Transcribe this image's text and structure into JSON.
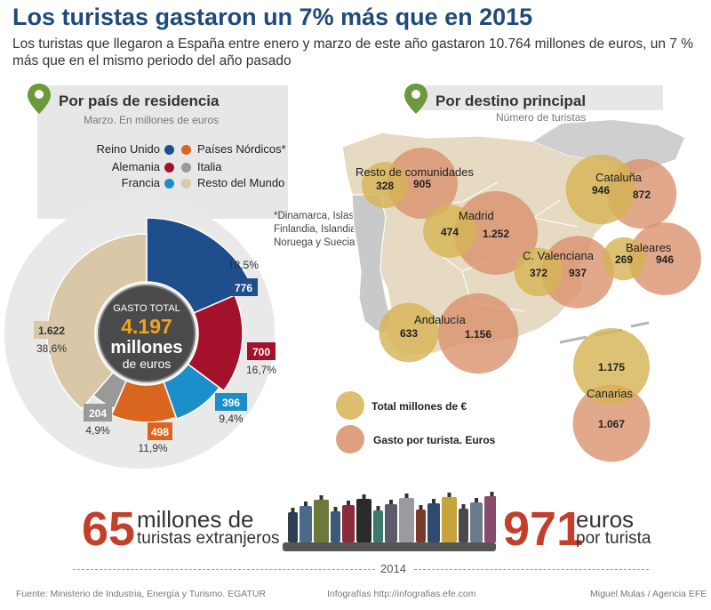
{
  "title": "Los turistas gastaron un 7% más que en 2015",
  "subtitle": "Los turistas que llegaron a España entre enero y marzo de este año gastaron 10.764 millones de euros, un 7 % más que en el mismo periodo del año pasado",
  "left_panel": {
    "header": "Por país de residencia",
    "subheader": "Marzo. En millones de euros",
    "legend": [
      {
        "label": "Reino Unido",
        "color": "#1f4e8c"
      },
      {
        "label": "Países Nórdicos*",
        "color": "#d9651f"
      },
      {
        "label": "Alemania",
        "color": "#a3122a"
      },
      {
        "label": "Italia",
        "color": "#999999"
      },
      {
        "label": "Francia",
        "color": "#1a8fc9"
      },
      {
        "label": "Resto del Mundo",
        "color": "#d8c8a8"
      }
    ],
    "footnote": [
      "*Dinamarca, Islas Feroe,",
      "Finlandia, Islandia,",
      "Noruega y Suecia"
    ],
    "center": {
      "label": "GASTO TOTAL",
      "value": "4.197",
      "unit1": "millones",
      "unit2": "de euros"
    }
  },
  "right_panel": {
    "header": "Por destino principal",
    "subheader": "Número de turistas",
    "legend": [
      {
        "label": "Total millones de €",
        "color": "#d6b356"
      },
      {
        "label": "Gasto por turista. Euros",
        "color": "#d98f6a"
      }
    ]
  },
  "chart_data": [
    {
      "type": "pie",
      "title": "Por país de residencia",
      "subtitle": "Marzo. En millones de euros",
      "slices": [
        {
          "name": "Reino Unido",
          "value": 776,
          "label": "776",
          "percent": "18,5%",
          "color": "#1f4e8c"
        },
        {
          "name": "Alemania",
          "value": 700,
          "label": "700",
          "percent": "16,7%",
          "color": "#a3122a"
        },
        {
          "name": "Francia",
          "value": 396,
          "label": "396",
          "percent": "9,4%",
          "color": "#1a8fc9"
        },
        {
          "name": "Países Nórdicos*",
          "value": 498,
          "label": "498",
          "percent": "11,9%",
          "color": "#d9651f"
        },
        {
          "name": "Italia",
          "value": 204,
          "label": "204",
          "percent": "4,9%",
          "color": "#999999"
        },
        {
          "name": "Resto del Mundo",
          "value": 1622,
          "label": "1.622",
          "percent": "38,6%",
          "color": "#d8c8a8"
        }
      ],
      "total": "4.197"
    },
    {
      "type": "bubble-map",
      "title": "Por destino principal",
      "subtitle": "Número de turistas",
      "series_names": [
        "Total millones de €",
        "Gasto por turista. Euros"
      ],
      "regions": [
        {
          "name": "Resto de comunidades",
          "total": "328",
          "per_tourist": "905"
        },
        {
          "name": "Madrid",
          "total": "474",
          "per_tourist": "1.252"
        },
        {
          "name": "Cataluña",
          "total": "946",
          "per_tourist": "872"
        },
        {
          "name": "C. Valenciana",
          "total": "372",
          "per_tourist": "937"
        },
        {
          "name": "Baleares",
          "total": "269",
          "per_tourist": "946"
        },
        {
          "name": "Andalucía",
          "total": "633",
          "per_tourist": "1.156"
        },
        {
          "name": "Canarias",
          "total": "1.175",
          "per_tourist": "1.067"
        }
      ]
    }
  ],
  "stats": {
    "left_number": "65",
    "left_text1": "millones de",
    "left_text2": "turistas extranjeros",
    "right_number": "971",
    "right_text1": "euros",
    "right_text2": "por turista",
    "year": "2014"
  },
  "footer": {
    "source": "Fuente: Ministerio de Industria, Energía y Turismo. EGATUR",
    "credit_center": "Infografías http://infografias.efe.com",
    "credit_right": "Miguel Mulas / Agencia EFE"
  }
}
